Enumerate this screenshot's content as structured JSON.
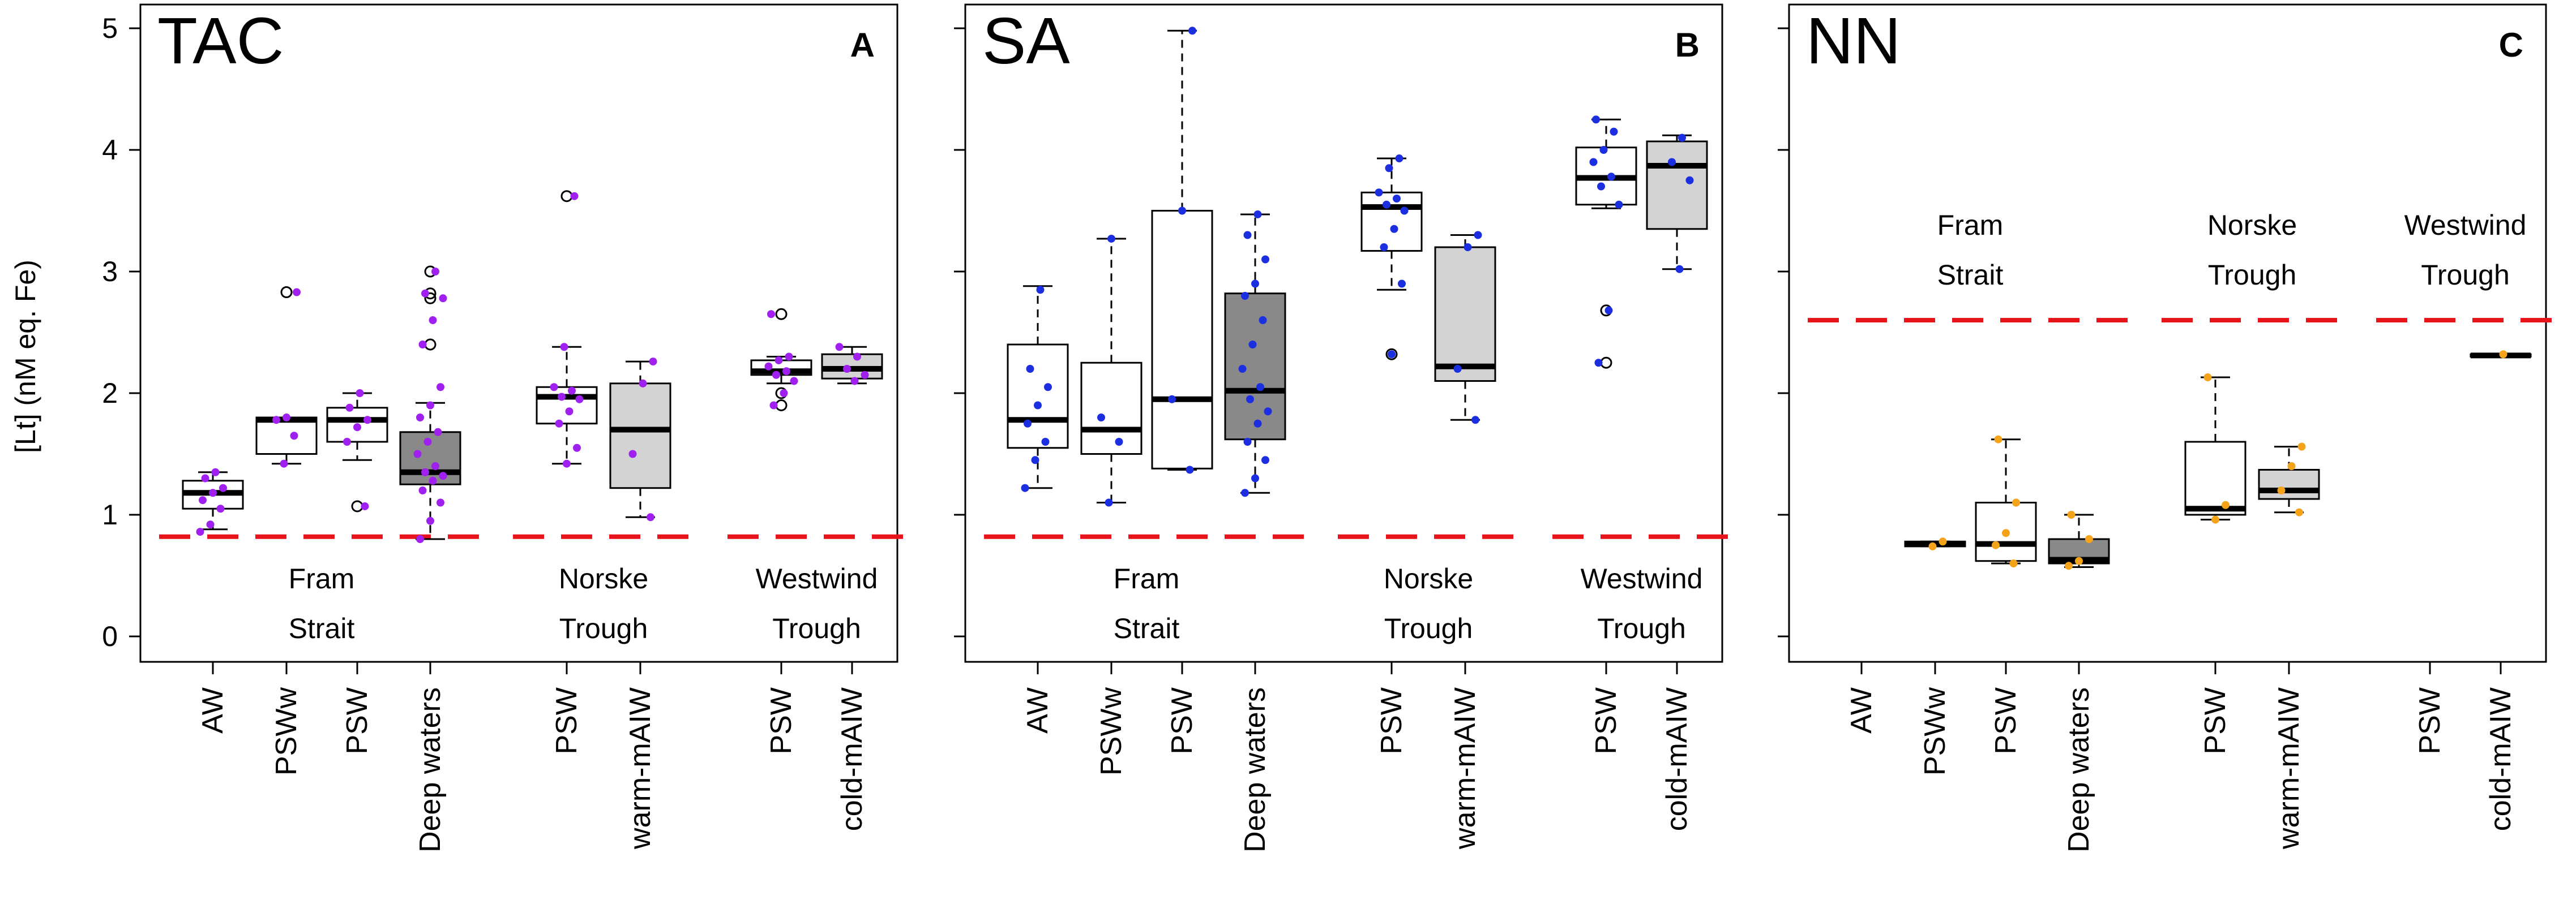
{
  "y_axis_label": "[Lt] (nM eq.  Fe)",
  "y_axis_ticks": [
    "0",
    "1",
    "2",
    "3",
    "4",
    "5"
  ],
  "colors": {
    "box_white": "#ffffff",
    "box_light": "#d3d3d3",
    "box_dark": "#898989",
    "reference_line": "#e8141b",
    "points_TAC": "#a020f0",
    "points_SA": "#1c2fe0",
    "points_NN": "#f5a31a"
  },
  "chart_data": [
    {
      "type": "box",
      "title": "TAC",
      "panel_letter": "A",
      "ylabel": "[Lt] (nM eq.  Fe)",
      "ylim": [
        0,
        5
      ],
      "categories": [
        "AW",
        "PSWw",
        "PSW",
        "Deep waters",
        "PSW",
        "warm-mAIW",
        "PSW",
        "cold-mAIW"
      ],
      "regions": [
        {
          "name_lines": [
            "Fram",
            "Strait"
          ],
          "categories": [
            "AW",
            "PSWw",
            "PSW",
            "Deep waters"
          ],
          "reference_level": 0.82
        },
        {
          "name_lines": [
            "Norske",
            "Trough"
          ],
          "categories": [
            "PSW",
            "warm-mAIW"
          ],
          "reference_level": 0.82
        },
        {
          "name_lines": [
            "Westwind",
            "Trough"
          ],
          "categories": [
            "PSW",
            "cold-mAIW"
          ],
          "reference_level": 0.82
        }
      ],
      "boxes": [
        {
          "category": "AW",
          "fill": "white",
          "whisker_low": 0.88,
          "q1": 1.05,
          "median": 1.18,
          "q3": 1.28,
          "whisker_high": 1.35,
          "outliers": [],
          "points": [
            0.86,
            0.92,
            1.05,
            1.12,
            1.18,
            1.22,
            1.3,
            1.35
          ]
        },
        {
          "category": "PSWw",
          "fill": "white",
          "whisker_low": 1.42,
          "q1": 1.5,
          "median": 1.78,
          "q3": 1.8,
          "whisker_high": 1.8,
          "outliers": [
            2.83
          ],
          "points": [
            1.42,
            1.65,
            1.78,
            1.8,
            2.83
          ]
        },
        {
          "category": "PSW",
          "fill": "white",
          "whisker_low": 1.45,
          "q1": 1.6,
          "median": 1.78,
          "q3": 1.88,
          "whisker_high": 2.0,
          "outliers": [
            1.07
          ],
          "points": [
            1.07,
            1.6,
            1.72,
            1.78,
            1.88,
            2.0
          ]
        },
        {
          "category": "Deep waters",
          "fill": "dark",
          "whisker_low": 0.8,
          "q1": 1.25,
          "median": 1.35,
          "q3": 1.68,
          "whisker_high": 1.92,
          "outliers": [
            2.4,
            2.78,
            2.82,
            3.0
          ],
          "points": [
            0.8,
            0.95,
            1.1,
            1.2,
            1.28,
            1.32,
            1.35,
            1.4,
            1.5,
            1.6,
            1.68,
            1.8,
            1.9,
            2.05,
            2.4,
            2.6,
            2.78,
            2.82,
            3.0
          ]
        },
        {
          "category": "PSW",
          "fill": "white",
          "whisker_low": 1.42,
          "q1": 1.75,
          "median": 1.97,
          "q3": 2.05,
          "whisker_high": 2.38,
          "outliers": [
            3.62
          ],
          "points": [
            1.42,
            1.55,
            1.75,
            1.85,
            1.95,
            1.97,
            2.02,
            2.05,
            2.38,
            3.62
          ]
        },
        {
          "category": "warm-mAIW",
          "fill": "light",
          "whisker_low": 0.98,
          "q1": 1.22,
          "median": 1.7,
          "q3": 2.08,
          "whisker_high": 2.26,
          "outliers": [],
          "points": [
            0.98,
            1.5,
            2.08,
            2.26
          ]
        },
        {
          "category": "PSW",
          "fill": "white",
          "whisker_low": 2.08,
          "q1": 2.15,
          "median": 2.18,
          "q3": 2.27,
          "whisker_high": 2.3,
          "outliers": [
            1.9,
            2.0,
            2.65
          ],
          "points": [
            1.9,
            2.0,
            2.1,
            2.15,
            2.18,
            2.22,
            2.27,
            2.3,
            2.65
          ]
        },
        {
          "category": "cold-mAIW",
          "fill": "light",
          "whisker_low": 2.08,
          "q1": 2.12,
          "median": 2.2,
          "q3": 2.32,
          "whisker_high": 2.38,
          "outliers": [],
          "points": [
            2.1,
            2.15,
            2.2,
            2.3,
            2.38
          ]
        }
      ]
    },
    {
      "type": "box",
      "title": "SA",
      "panel_letter": "B",
      "ylabel": "",
      "ylim": [
        0,
        5
      ],
      "categories": [
        "AW",
        "PSWw",
        "PSW",
        "Deep waters",
        "PSW",
        "warm-mAIW",
        "PSW",
        "cold-mAIW"
      ],
      "regions": [
        {
          "name_lines": [
            "Fram",
            "Strait"
          ],
          "categories": [
            "AW",
            "PSWw",
            "PSW",
            "Deep waters"
          ],
          "reference_level": 0.82
        },
        {
          "name_lines": [
            "Norske",
            "Trough"
          ],
          "categories": [
            "PSW",
            "warm-mAIW"
          ],
          "reference_level": 0.82
        },
        {
          "name_lines": [
            "Westwind",
            "Trough"
          ],
          "categories": [
            "PSW",
            "cold-mAIW"
          ],
          "reference_level": 0.82
        }
      ],
      "boxes": [
        {
          "category": "AW",
          "fill": "white",
          "whisker_low": 1.22,
          "q1": 1.55,
          "median": 1.78,
          "q3": 2.4,
          "whisker_high": 2.88,
          "outliers": [],
          "points": [
            1.22,
            1.45,
            1.6,
            1.75,
            1.9,
            2.05,
            2.2,
            2.85
          ]
        },
        {
          "category": "PSWw",
          "fill": "white",
          "whisker_low": 1.1,
          "q1": 1.5,
          "median": 1.7,
          "q3": 2.25,
          "whisker_high": 3.27,
          "outliers": [],
          "points": [
            1.1,
            1.6,
            1.8,
            3.27
          ]
        },
        {
          "category": "PSW",
          "fill": "white",
          "whisker_low": 1.37,
          "q1": 1.38,
          "median": 1.95,
          "q3": 3.5,
          "whisker_high": 4.98,
          "outliers": [],
          "points": [
            1.37,
            1.95,
            3.5,
            4.98
          ]
        },
        {
          "category": "Deep waters",
          "fill": "dark",
          "whisker_low": 1.18,
          "q1": 1.62,
          "median": 2.02,
          "q3": 2.82,
          "whisker_high": 3.47,
          "outliers": [],
          "points": [
            1.18,
            1.3,
            1.45,
            1.6,
            1.75,
            1.85,
            1.95,
            2.05,
            2.2,
            2.4,
            2.6,
            2.8,
            2.9,
            3.1,
            3.3,
            3.47
          ]
        },
        {
          "category": "PSW",
          "fill": "white",
          "whisker_low": 2.85,
          "q1": 3.17,
          "median": 3.53,
          "q3": 3.65,
          "whisker_high": 3.93,
          "outliers": [
            2.32
          ],
          "points": [
            2.32,
            2.9,
            3.2,
            3.35,
            3.5,
            3.55,
            3.6,
            3.65,
            3.85,
            3.93
          ]
        },
        {
          "category": "warm-mAIW",
          "fill": "light",
          "whisker_low": 1.78,
          "q1": 2.1,
          "median": 2.22,
          "q3": 3.2,
          "whisker_high": 3.3,
          "outliers": [],
          "points": [
            1.78,
            2.2,
            3.2,
            3.3
          ]
        },
        {
          "category": "PSW",
          "fill": "white",
          "whisker_low": 3.52,
          "q1": 3.55,
          "median": 3.77,
          "q3": 4.02,
          "whisker_high": 4.25,
          "outliers": [
            2.25,
            2.68
          ],
          "points": [
            2.25,
            2.68,
            3.55,
            3.7,
            3.78,
            3.9,
            4.0,
            4.15,
            4.25
          ]
        },
        {
          "category": "cold-mAIW",
          "fill": "light",
          "whisker_low": 3.02,
          "q1": 3.35,
          "median": 3.87,
          "q3": 4.07,
          "whisker_high": 4.12,
          "outliers": [],
          "points": [
            3.02,
            3.75,
            3.9,
            4.1
          ]
        }
      ]
    },
    {
      "type": "box",
      "title": "NN",
      "panel_letter": "C",
      "ylabel": "",
      "ylim": [
        0,
        5
      ],
      "categories": [
        "AW",
        "PSWw",
        "PSW",
        "Deep waters",
        "PSW",
        "warm-mAIW",
        "PSW",
        "cold-mAIW"
      ],
      "regions": [
        {
          "name_lines": [
            "Fram",
            "Strait"
          ],
          "categories": [
            "AW",
            "PSWw",
            "PSW",
            "Deep waters"
          ],
          "reference_level": 2.6
        },
        {
          "name_lines": [
            "Norske",
            "Trough"
          ],
          "categories": [
            "PSW",
            "warm-mAIW"
          ],
          "reference_level": 2.6
        },
        {
          "name_lines": [
            "Westwind",
            "Trough"
          ],
          "categories": [
            "PSW",
            "cold-mAIW"
          ],
          "reference_level": 2.6
        }
      ],
      "boxes": [
        {
          "category": "PSWw",
          "fill": "white",
          "whisker_low": 0.74,
          "q1": 0.74,
          "median": 0.76,
          "q3": 0.78,
          "whisker_high": 0.78,
          "outliers": [],
          "points": [
            0.74,
            0.78
          ]
        },
        {
          "category": "Deep waters",
          "fill": "dark",
          "whisker_low": 0.57,
          "q1": 0.6,
          "median": 0.63,
          "q3": 0.8,
          "whisker_high": 1.0,
          "outliers": [],
          "points": [
            0.58,
            0.62,
            0.8,
            1.0
          ]
        },
        {
          "category": "PSW",
          "fill": "white",
          "whisker_low": 0.6,
          "q1": 0.62,
          "median": 0.76,
          "q3": 1.1,
          "whisker_high": 1.62,
          "outliers": [],
          "points": [
            0.6,
            0.75,
            0.85,
            1.1,
            1.62
          ]
        },
        {
          "category": "warm-mAIW",
          "fill": "light",
          "whisker_low": 1.02,
          "q1": 1.13,
          "median": 1.2,
          "q3": 1.37,
          "whisker_high": 1.56,
          "outliers": [],
          "points": [
            1.02,
            1.2,
            1.4,
            1.56
          ]
        },
        {
          "category": "PSW",
          "fill": "white",
          "whisker_low": 0.96,
          "q1": 1.0,
          "median": 1.05,
          "q3": 1.6,
          "whisker_high": 2.13,
          "outliers": [],
          "points": [
            0.96,
            1.08,
            2.13
          ]
        },
        {
          "category": "cold-mAIW",
          "fill": "dark",
          "whisker_low": 2.3,
          "q1": 2.3,
          "median": 2.31,
          "q3": 2.32,
          "whisker_high": 2.32,
          "outliers": [],
          "points": [
            2.32
          ]
        }
      ]
    }
  ]
}
